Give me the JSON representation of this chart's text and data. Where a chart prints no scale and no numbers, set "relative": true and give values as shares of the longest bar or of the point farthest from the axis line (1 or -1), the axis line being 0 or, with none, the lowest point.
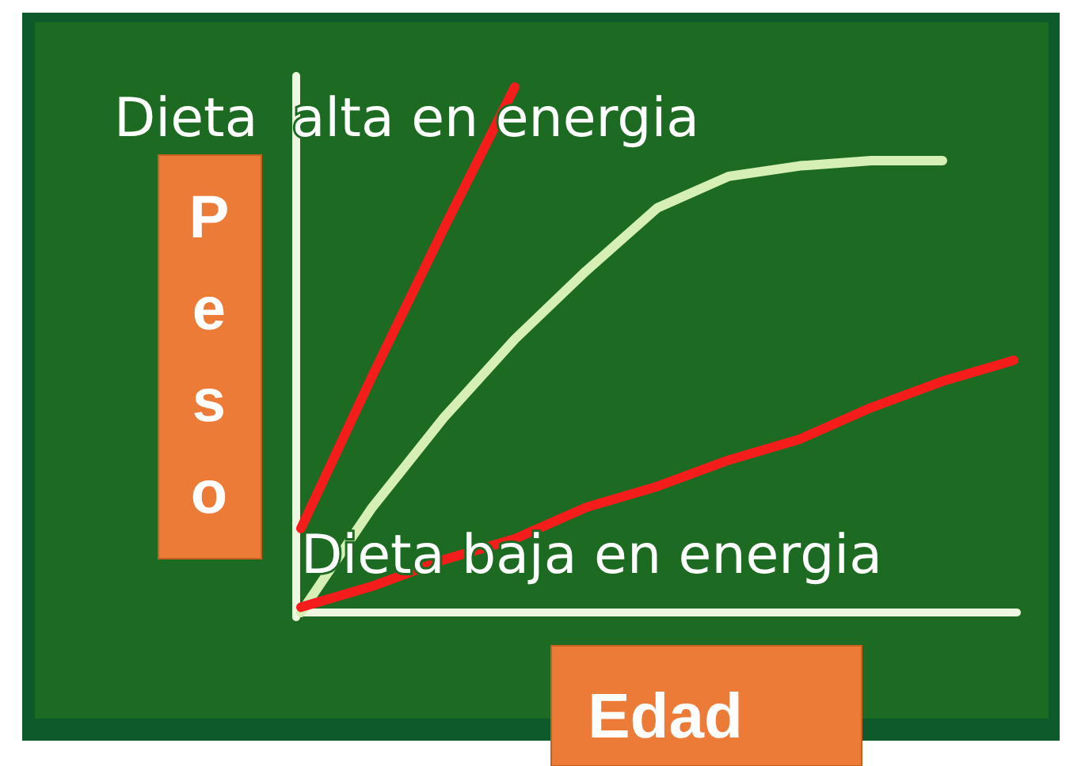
{
  "chart_data": {
    "type": "line",
    "relative": true,
    "xlabel": "Edad",
    "ylabel": "Peso",
    "tick_labels": false,
    "annotations": [
      "Dieta  alta en energia",
      "Dieta baja en energia"
    ],
    "categories": [
      null,
      null,
      null,
      null,
      null,
      null,
      null,
      null,
      null,
      null,
      null
    ],
    "series": [
      {
        "color": "#d6efb4",
        "values": [
          0,
          0.2,
          0.37,
          0.52,
          0.65,
          0.77,
          0.83,
          0.85,
          0.86,
          0.86,
          null
        ]
      },
      {
        "color": "#f51c1c",
        "values": [
          0.16,
          0.45,
          0.73,
          1,
          null,
          null,
          null,
          null,
          null,
          null,
          null
        ]
      },
      {
        "color": "#f51c1c",
        "values": [
          0.01,
          0.05,
          0.1,
          0.14,
          0.2,
          0.24,
          0.29,
          0.33,
          0.39,
          0.44,
          0.48
        ]
      }
    ]
  }
}
